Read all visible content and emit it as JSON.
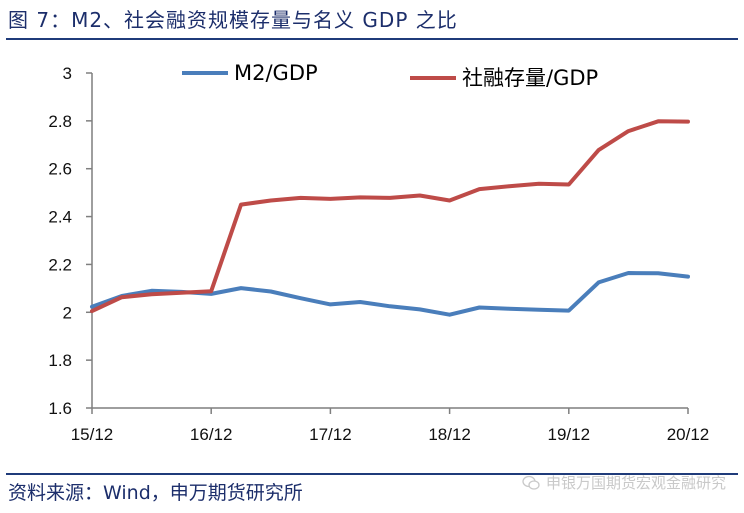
{
  "header": {
    "title": "图 7：M2、社会融资规模存量与名义 GDP 之比"
  },
  "footer": {
    "source": "资料来源：Wind，申万期货研究所",
    "watermark": "申银万国期货宏观金融研究",
    "watermark_icon": "wechat-icon"
  },
  "colors": {
    "m2": "#4a7ebb",
    "social": "#be4b48",
    "title": "#1c2e6b",
    "rule": "#1f3b7a"
  },
  "chart_data": {
    "type": "line",
    "title": "",
    "xlabel": "",
    "ylabel": "",
    "x_ticks": [
      "15/12",
      "16/12",
      "17/12",
      "18/12",
      "19/12",
      "20/12"
    ],
    "ylim": [
      1.6,
      3.0
    ],
    "y_ticks": [
      "1.6",
      "1.8",
      "2",
      "2.2",
      "2.4",
      "2.6",
      "2.8",
      "3"
    ],
    "grid": false,
    "legend_position": "top",
    "series": [
      {
        "name": "M2/GDP",
        "color": "#4a7ebb",
        "values": [
          2.023,
          2.068,
          2.09,
          2.085,
          2.077,
          2.101,
          2.087,
          2.059,
          2.033,
          2.043,
          2.025,
          2.012,
          1.99,
          2.02,
          2.015,
          2.011,
          2.007,
          2.125,
          2.164,
          2.163,
          2.149
        ]
      },
      {
        "name": "社融存量/GDP",
        "color": "#be4b48",
        "values": [
          2.005,
          2.063,
          2.075,
          2.082,
          2.088,
          2.45,
          2.467,
          2.478,
          2.474,
          2.48,
          2.478,
          2.488,
          2.467,
          2.515,
          2.527,
          2.537,
          2.534,
          2.678,
          2.757,
          2.798,
          2.797
        ]
      }
    ]
  }
}
